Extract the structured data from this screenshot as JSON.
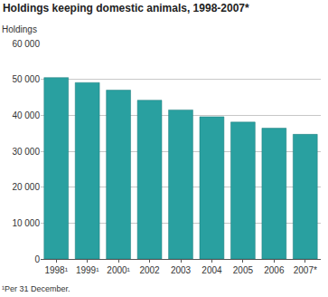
{
  "chart_data": {
    "type": "bar",
    "title": "Holdings keeping domestic animals, 1998-2007*",
    "ylabel": "Holdings",
    "categories": [
      "1998¹",
      "1999¹",
      "2000¹",
      "2002",
      "2003",
      "2004",
      "2005",
      "2006",
      "2007*"
    ],
    "values": [
      50500,
      49100,
      47000,
      44200,
      41500,
      39600,
      38100,
      36400,
      34700
    ],
    "color": "#29a0a0",
    "ylim": [
      0,
      60000
    ],
    "yticks": [
      {
        "value": 0,
        "label": "0"
      },
      {
        "value": 10000,
        "label": "10 000"
      },
      {
        "value": 20000,
        "label": "20 000"
      },
      {
        "value": 30000,
        "label": "30 000"
      },
      {
        "value": 40000,
        "label": "40 000"
      },
      {
        "value": 50000,
        "label": "50 000"
      },
      {
        "value": 60000,
        "label": "60 000"
      }
    ],
    "grid": true,
    "annotations": [
      "¹Per 31 December."
    ]
  }
}
